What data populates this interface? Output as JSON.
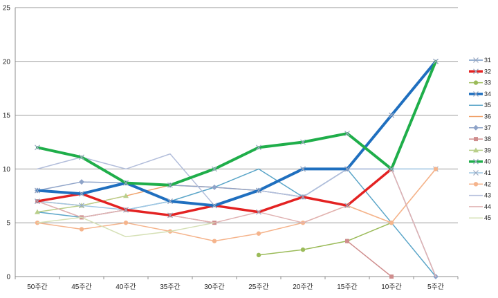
{
  "chart_data": {
    "type": "line",
    "categories": [
      "50주간",
      "45주간",
      "40주간",
      "35주간",
      "30주간",
      "25주간",
      "20주간",
      "15주간",
      "10주간",
      "5주간"
    ],
    "y_ticks": [
      "0",
      "5",
      "10",
      "15",
      "20",
      "25"
    ],
    "ylim": [
      0,
      25
    ],
    "grid": true,
    "legend_position": "right",
    "series": [
      {
        "name": "31",
        "color": "#7a9cc6",
        "width": 1.5,
        "marker": "x",
        "values": [
          8,
          7.7,
          8.7,
          7,
          6.6,
          8,
          10,
          10,
          15,
          20
        ]
      },
      {
        "name": "32",
        "color": "#e32222",
        "width": 3.5,
        "marker": "x",
        "values": [
          7,
          7.7,
          6.2,
          5.7,
          6.6,
          6,
          7.4,
          6.6,
          10,
          null
        ]
      },
      {
        "name": "33",
        "color": "#9bbb59",
        "width": 1.5,
        "marker": "circle",
        "values": [
          null,
          null,
          null,
          null,
          null,
          2,
          2.5,
          3.3,
          5,
          null
        ]
      },
      {
        "name": "34",
        "color": "#1f6fbf",
        "width": 4,
        "marker": "x",
        "values": [
          8,
          7.7,
          8.7,
          7,
          6.6,
          8,
          10,
          10,
          15,
          20
        ]
      },
      {
        "name": "35",
        "color": "#5aa5c8",
        "width": 1.5,
        "marker": "none",
        "values": [
          6,
          5.5,
          6.2,
          7,
          8.3,
          10,
          7.4,
          10,
          5,
          0
        ]
      },
      {
        "name": "36",
        "color": "#f0a26a",
        "width": 1.5,
        "marker": "none",
        "values": [
          7,
          6.6,
          7.5,
          8.5,
          8.3,
          8,
          7.4,
          6.6,
          5,
          10
        ]
      },
      {
        "name": "37",
        "color": "#8ea3c8",
        "width": 1.5,
        "marker": "diamond",
        "values": [
          8,
          8.8,
          8.7,
          8.5,
          8.3,
          8,
          7.4,
          10,
          10,
          0
        ]
      },
      {
        "name": "38",
        "color": "#cf8d8d",
        "width": 1.5,
        "marker": "square",
        "values": [
          7,
          5.5,
          6.2,
          5.7,
          5,
          null,
          null,
          3.3,
          0,
          null
        ]
      },
      {
        "name": "39",
        "color": "#b9cf8a",
        "width": 1.5,
        "marker": "triangle",
        "values": [
          6,
          6.6,
          7.5,
          null,
          null,
          null,
          null,
          null,
          null,
          null
        ]
      },
      {
        "name": "40",
        "color": "#1fae4a",
        "width": 4,
        "marker": "x",
        "values": [
          12,
          11.1,
          8.7,
          8.5,
          10,
          12,
          12.5,
          13.3,
          10,
          20
        ]
      },
      {
        "name": "41",
        "color": "#9fc6e3",
        "width": 1.5,
        "marker": "x",
        "values": [
          7,
          6.6,
          6.2,
          7,
          6.6,
          8,
          7.4,
          10,
          10,
          10
        ]
      },
      {
        "name": "42",
        "color": "#f5b48c",
        "width": 1.5,
        "marker": "circle",
        "values": [
          5,
          4.4,
          5,
          4.2,
          3.3,
          4,
          5,
          6.6,
          5,
          10
        ]
      },
      {
        "name": "43",
        "color": "#b3bedb",
        "width": 1.5,
        "marker": "none",
        "values": [
          10,
          11.1,
          10,
          11.4,
          6.6,
          8,
          7.4,
          10,
          10,
          0
        ]
      },
      {
        "name": "44",
        "color": "#e0b2b2",
        "width": 1.5,
        "marker": "none",
        "values": [
          7,
          5.5,
          6.2,
          5.7,
          5,
          6,
          5,
          6.6,
          10,
          0
        ]
      },
      {
        "name": "45",
        "color": "#d5e0b5",
        "width": 1.5,
        "marker": "none",
        "values": [
          5,
          5.5,
          3.7,
          4.2,
          5,
          null,
          null,
          0,
          null,
          null
        ]
      }
    ]
  }
}
